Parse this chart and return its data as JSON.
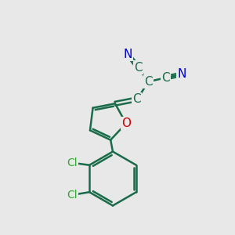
{
  "background_color": "#e8e8e8",
  "bond_color": "#1a6b4a",
  "nitrogen_color": "#0000cc",
  "oxygen_color": "#cc0000",
  "chlorine_color": "#33aa33",
  "line_width": 1.8,
  "font_size": 11,
  "xlim": [
    0,
    10
  ],
  "ylim": [
    0,
    10
  ]
}
